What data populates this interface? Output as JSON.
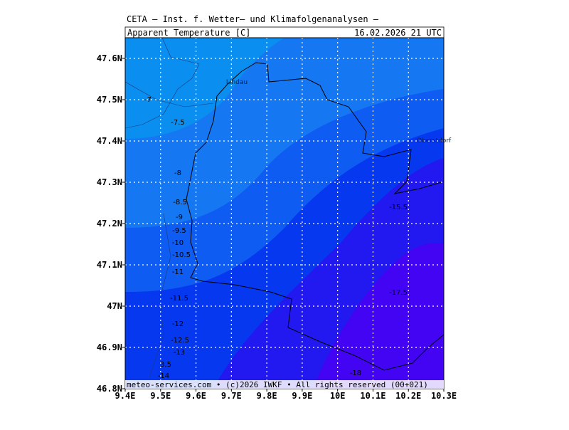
{
  "header": {
    "title": "CETA — Inst. f. Wetter— und Klimafolgenanalysen —",
    "variable": "Apparent_Temperature [C]",
    "valid_time": "16.02.2026 21 UTC"
  },
  "axes": {
    "lat_labels": [
      "47.6N",
      "47.5N",
      "47.4N",
      "47.3N",
      "47.2N",
      "47.1N",
      "47N",
      "46.9N",
      "46.8N"
    ],
    "lon_labels": [
      "9.4E",
      "9.5E",
      "9.6E",
      "9.7E",
      "9.8E",
      "9.9E",
      "10E",
      "10.1E",
      "10.2E",
      "10.3E"
    ]
  },
  "contour_labels": [
    "-7",
    "-7.5",
    "-8",
    "-8.5",
    "-9",
    "-9.5",
    "-10",
    "-10.5",
    "-11",
    "-11.5",
    "-12",
    "-12.5",
    "-13",
    "3.5",
    "-14",
    "-15.5",
    "-17.5",
    "-18"
  ],
  "places": [
    "Lindau",
    "Oberstdorf"
  ],
  "footer": "meteo-services.com • (c)2026 IWKF • All rights reserved (00+021)"
}
